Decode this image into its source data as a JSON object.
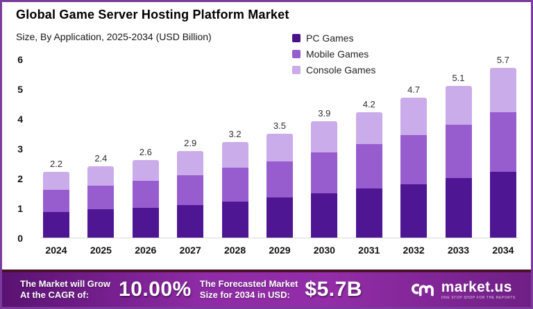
{
  "header": {
    "title": "Global Game Server Hosting Platform Market",
    "subtitle": "Size, By Application, 2025-2034 (USD Billion)"
  },
  "legend": {
    "position": "top-right",
    "items": [
      {
        "label": "PC Games",
        "color": "#4a1189"
      },
      {
        "label": "Mobile Games",
        "color": "#975cce"
      },
      {
        "label": "Console Games",
        "color": "#c9ace9"
      }
    ]
  },
  "chart_data": {
    "type": "bar",
    "stacked": true,
    "title": "Global Game Server Hosting Platform Market",
    "subtitle": "Size, By Application, 2025-2034 (USD Billion)",
    "unit": "USD Billion",
    "categories": [
      "2024",
      "2025",
      "2026",
      "2027",
      "2028",
      "2029",
      "2030",
      "2031",
      "2032",
      "2033",
      "2034"
    ],
    "series": [
      {
        "name": "PC Games",
        "color": "#4f1694",
        "values": [
          0.85,
          0.95,
          1.0,
          1.1,
          1.2,
          1.35,
          1.5,
          1.65,
          1.8,
          2.0,
          2.2
        ]
      },
      {
        "name": "Mobile Games",
        "color": "#975cce",
        "values": [
          0.75,
          0.8,
          0.9,
          1.0,
          1.15,
          1.2,
          1.35,
          1.5,
          1.65,
          1.8,
          2.0
        ]
      },
      {
        "name": "Console Games",
        "color": "#c9ace9",
        "values": [
          0.6,
          0.65,
          0.7,
          0.8,
          0.85,
          0.95,
          1.05,
          1.05,
          1.25,
          1.3,
          1.5
        ]
      }
    ],
    "totals": [
      2.2,
      2.4,
      2.6,
      2.9,
      3.2,
      3.5,
      3.9,
      4.2,
      4.7,
      5.1,
      5.7
    ],
    "ylim": [
      0,
      6
    ],
    "yticks": [
      0,
      1,
      2,
      3,
      4,
      5,
      6
    ],
    "grid": false,
    "legend_position": "top-right"
  },
  "banner": {
    "cagr_label_line1": "The Market will Grow",
    "cagr_label_line2": "At the CAGR of:",
    "cagr_value": "10.00%",
    "forecast_label_line1": "The Forecasted Market",
    "forecast_label_line2": "Size for 2034 in USD:",
    "forecast_value": "$5.7B",
    "logo_text": "market.us",
    "logo_tagline": "ONE STOP SHOP FOR THE REPORTS"
  }
}
